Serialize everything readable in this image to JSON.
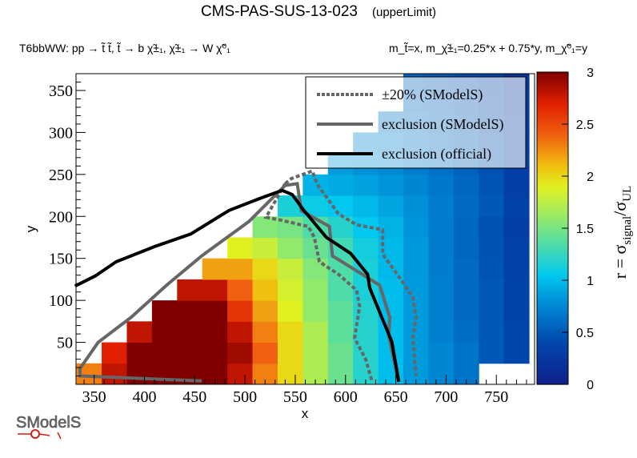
{
  "header": {
    "title": "CMS-PAS-SUS-13-023",
    "subtitle": "(upperLimit)",
    "process": "T6bbWW: pp → t̃ t̃, t̃ → b χ̃±₁, χ̃±₁ → W χ̃⁰₁",
    "masses": "m_t̃=x, m_χ̃±₁=0.25*x + 0.75*y, m_χ̃⁰₁=y"
  },
  "logo": "SModelS",
  "chart_data": {
    "type": "heatmap",
    "xlabel": "x",
    "ylabel": "y",
    "zlabel": "r = σsignal/σUL",
    "zlabel_parts": {
      "main": "r = σ",
      "sub1": "signal",
      "slash": "/σ",
      "sub2": "UL"
    },
    "xlim": [
      332,
      788
    ],
    "ylim": [
      0,
      370
    ],
    "zlim": [
      0,
      3
    ],
    "xticks": [
      350,
      400,
      450,
      500,
      550,
      600,
      650,
      700,
      750
    ],
    "yticks": [
      50,
      100,
      150,
      200,
      250,
      300,
      350
    ],
    "zticks": [
      "0",
      "0.5",
      "1",
      "1.5",
      "2",
      "2.5",
      "3"
    ],
    "cell_size": [
      25,
      25
    ],
    "x_centers": [
      345,
      370,
      395,
      420,
      445,
      470,
      495,
      520,
      545,
      570,
      595,
      620,
      645,
      670,
      695,
      720,
      745,
      770
    ],
    "rows": [
      {
        "y": 12.5,
        "r": [
          2.3,
          2.8,
          3,
          3.1,
          3.1,
          3.1,
          2.8,
          2.3,
          2,
          1.7,
          1.45,
          1.2,
          1,
          0.85,
          0.75,
          0.65,
          null,
          null
        ]
      },
      {
        "y": 37.5,
        "r": [
          null,
          2.7,
          3.1,
          3.3,
          3.3,
          3.3,
          2.9,
          2.4,
          2,
          1.7,
          1.45,
          1.2,
          1,
          0.85,
          0.75,
          0.65,
          0.5,
          0.4
        ]
      },
      {
        "y": 62.5,
        "r": [
          null,
          null,
          2.8,
          3.3,
          3.3,
          3.3,
          2.8,
          2.3,
          2,
          1.7,
          1.4,
          1.2,
          1,
          0.85,
          0.72,
          0.62,
          0.5,
          0.4
        ]
      },
      {
        "y": 87.5,
        "r": [
          null,
          null,
          null,
          3.1,
          3.3,
          3.1,
          2.6,
          2.2,
          1.9,
          1.6,
          1.4,
          1.18,
          1,
          0.85,
          0.72,
          0.6,
          0.5,
          0.38
        ]
      },
      {
        "y": 112.5,
        "r": [
          null,
          null,
          null,
          null,
          2.8,
          2.8,
          2.4,
          2.1,
          1.85,
          1.6,
          1.35,
          1.15,
          1,
          0.85,
          0.72,
          0.6,
          0.5,
          0.38
        ]
      },
      {
        "y": 137.5,
        "r": [
          null,
          null,
          null,
          null,
          null,
          2.2,
          2.2,
          2,
          1.8,
          1.55,
          1.35,
          1.15,
          0.98,
          0.84,
          0.7,
          0.6,
          0.48,
          0.36
        ]
      },
      {
        "y": 162.5,
        "r": [
          null,
          null,
          null,
          null,
          null,
          null,
          1.9,
          1.8,
          1.6,
          1.45,
          1.3,
          1.12,
          0.98,
          0.84,
          0.7,
          0.58,
          0.47,
          0.35
        ]
      },
      {
        "y": 187.5,
        "r": [
          null,
          null,
          null,
          null,
          null,
          null,
          null,
          1.55,
          1.5,
          1.35,
          1.2,
          1.05,
          0.95,
          0.82,
          0.7,
          0.58,
          0.46,
          0.34
        ]
      },
      {
        "y": 212.5,
        "r": [
          null,
          null,
          null,
          null,
          null,
          null,
          null,
          null,
          1.15,
          1.1,
          1.05,
          0.98,
          0.9,
          0.8,
          0.7,
          0.6,
          0.5,
          0.35
        ]
      },
      {
        "y": 237.5,
        "r": [
          null,
          null,
          null,
          null,
          null,
          null,
          null,
          null,
          null,
          0.95,
          0.92,
          0.88,
          0.82,
          0.75,
          0.67,
          0.58,
          0.48,
          0.33
        ]
      },
      {
        "y": 262.5,
        "r": [
          null,
          null,
          null,
          null,
          null,
          null,
          null,
          null,
          null,
          null,
          0.85,
          0.8,
          0.76,
          0.7,
          0.63,
          0.55,
          0.46,
          0.32
        ]
      },
      {
        "y": 287.5,
        "r": [
          null,
          null,
          null,
          null,
          null,
          null,
          null,
          null,
          null,
          null,
          null,
          0.75,
          0.72,
          0.66,
          0.6,
          0.52,
          0.45,
          0.3
        ]
      },
      {
        "y": 312.5,
        "r": [
          null,
          null,
          null,
          null,
          null,
          null,
          null,
          null,
          null,
          null,
          null,
          null,
          0.66,
          0.62,
          0.56,
          0.5,
          0.42,
          0.3
        ]
      },
      {
        "y": 337.5,
        "r": [
          null,
          null,
          null,
          null,
          null,
          null,
          null,
          null,
          null,
          null,
          null,
          null,
          null,
          0.58,
          0.53,
          0.46,
          0.4,
          0.28
        ]
      },
      {
        "y": 362.5,
        "r": [
          null,
          null,
          null,
          null,
          null,
          null,
          null,
          null,
          null,
          null,
          null,
          null,
          null,
          0.55,
          0.5,
          0.44,
          0.38,
          0.2
        ]
      }
    ],
    "palette": [
      [
        0,
        "#101f8c"
      ],
      [
        0.4,
        "#0046aa"
      ],
      [
        0.8,
        "#0090d8"
      ],
      [
        1.05,
        "#00c8f0"
      ],
      [
        1.35,
        "#50dca8"
      ],
      [
        1.65,
        "#a0ec60"
      ],
      [
        1.9,
        "#e0f020"
      ],
      [
        2.1,
        "#f0c010"
      ],
      [
        2.4,
        "#f06010"
      ],
      [
        2.7,
        "#e02000"
      ],
      [
        3,
        "#800000"
      ]
    ],
    "legend": {
      "placement": "top-right",
      "entries": [
        {
          "label": "±20% (SModelS)",
          "style": "dashed",
          "color": "#666666"
        },
        {
          "label": "exclusion (SModelS)",
          "style": "solid",
          "color": "#666666"
        },
        {
          "label": "exclusion (official)",
          "style": "solid",
          "color": "#000000"
        }
      ]
    },
    "contours": {
      "official": [
        [
          331,
          117
        ],
        [
          351,
          129
        ],
        [
          372,
          146
        ],
        [
          410,
          164
        ],
        [
          446,
          179
        ],
        [
          484,
          207
        ],
        [
          516,
          222
        ],
        [
          537,
          231
        ],
        [
          547,
          226
        ],
        [
          558,
          208
        ],
        [
          581,
          175
        ],
        [
          605,
          156
        ],
        [
          622,
          131
        ],
        [
          624,
          115
        ],
        [
          637,
          77
        ],
        [
          646,
          51
        ],
        [
          653,
          3
        ]
      ],
      "smodels": [
        [
          457,
          4
        ],
        [
          336,
          10
        ],
        [
          336,
          19
        ],
        [
          354,
          50
        ],
        [
          387,
          80
        ],
        [
          422,
          118
        ],
        [
          457,
          153
        ],
        [
          504,
          194
        ],
        [
          540,
          237
        ],
        [
          552,
          239
        ],
        [
          556,
          207
        ],
        [
          584,
          188
        ],
        [
          587,
          153
        ],
        [
          622,
          127
        ],
        [
          634,
          118
        ],
        [
          644,
          80
        ],
        [
          643,
          58
        ],
        [
          652,
          7
        ]
      ],
      "minus20": [
        [
          540,
          239
        ],
        [
          521,
          199
        ],
        [
          534,
          196
        ],
        [
          563,
          188
        ],
        [
          569,
          175
        ],
        [
          574,
          146
        ],
        [
          593,
          131
        ],
        [
          611,
          112
        ],
        [
          614,
          93
        ],
        [
          609,
          55
        ],
        [
          620,
          30
        ],
        [
          626,
          5
        ]
      ],
      "plus20": [
        [
          540,
          239
        ],
        [
          546,
          245
        ],
        [
          567,
          254
        ],
        [
          572,
          238
        ],
        [
          593,
          203
        ],
        [
          611,
          190
        ],
        [
          637,
          184
        ],
        [
          637,
          155
        ],
        [
          652,
          130
        ],
        [
          667,
          104
        ],
        [
          670,
          79
        ],
        [
          667,
          55
        ],
        [
          670,
          10
        ]
      ]
    }
  }
}
